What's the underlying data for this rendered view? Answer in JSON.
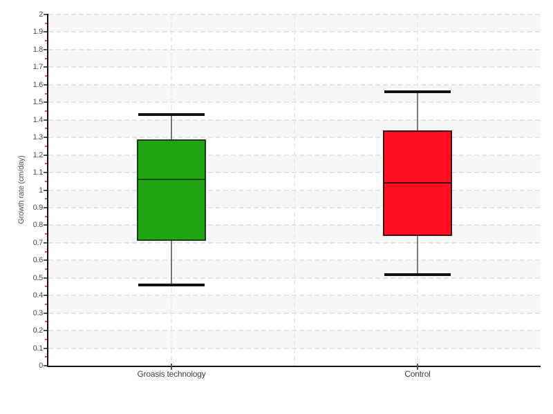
{
  "chart_data": {
    "type": "boxplot",
    "title": "",
    "ylabel": "Growth rate (cm/day)",
    "xlabel": "",
    "ylim": [
      0,
      2
    ],
    "y_major_step": 0.1,
    "y_minor_step": 0.05,
    "y_tick_labels": [
      "2",
      "1.9",
      "1.8",
      "1.7",
      "1.6",
      "1.5",
      "1.4",
      "1.3",
      "1.2",
      "1.1",
      "1",
      "0.9",
      "0.8",
      "0.7",
      "0.6",
      "0.5",
      "0.4",
      "0.3",
      "0.2",
      "0.1",
      "0"
    ],
    "categories": [
      "Groasis technology",
      "Control"
    ],
    "series": [
      {
        "name": "Groasis technology",
        "min": 0.46,
        "q1": 0.71,
        "median": 1.06,
        "q3": 1.29,
        "max": 1.43,
        "fill": "#21a512",
        "border": "#1c3a14",
        "median_color": "#0d4d08"
      },
      {
        "name": "Control",
        "min": 0.52,
        "q1": 0.74,
        "median": 1.04,
        "q3": 1.34,
        "max": 1.56,
        "fill": "#fe1021",
        "border": "#471016",
        "median_color": "#45070d"
      }
    ],
    "legend": "none",
    "grid": {
      "horizontal": "dashed",
      "vertical": "dashed-quarter-lines",
      "bands": "alternating-light-gray"
    },
    "style": {
      "band_color": "#f7f7f7",
      "hgrid_color": "#e3e3e3",
      "vgrid_color": "#ececec",
      "axis_color": "#111111",
      "major_tick_color": "#555555",
      "minor_tick_color": "#e74c3c",
      "tick_label_color": "#4a4a4a",
      "whisker_stem_color": "#7a7a7a",
      "whisker_cap_color": "#111111"
    }
  }
}
